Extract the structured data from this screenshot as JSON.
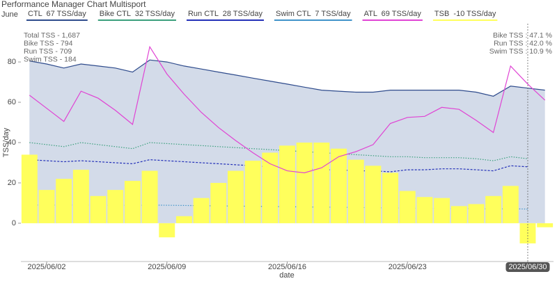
{
  "chart_data": {
    "type": "line",
    "title": "Performance Manager Chart Multisport",
    "month_label": "June",
    "x_label": "date",
    "y_label": "TSS/day",
    "x": [
      "2025/06/01",
      "2025/06/02",
      "2025/06/03",
      "2025/06/04",
      "2025/06/05",
      "2025/06/06",
      "2025/06/07",
      "2025/06/08",
      "2025/06/09",
      "2025/06/10",
      "2025/06/11",
      "2025/06/12",
      "2025/06/13",
      "2025/06/14",
      "2025/06/15",
      "2025/06/16",
      "2025/06/17",
      "2025/06/18",
      "2025/06/19",
      "2025/06/20",
      "2025/06/21",
      "2025/06/22",
      "2025/06/23",
      "2025/06/24",
      "2025/06/25",
      "2025/06/26",
      "2025/06/27",
      "2025/06/28",
      "2025/06/29",
      "2025/06/30",
      "2025/07/01"
    ],
    "xlim": [
      "2025/05/31 12:00",
      "2025/07/01 12:00"
    ],
    "xticks": [
      "2025/06/02",
      "2025/06/09",
      "2025/06/16",
      "2025/06/23",
      "2025/06/30"
    ],
    "ylim": [
      -19,
      99
    ],
    "yticks": [
      0,
      20,
      40,
      60,
      80
    ],
    "grid": false,
    "series": [
      {
        "name": "CTL  67 TSS/day",
        "type": "area",
        "line_style": "solid",
        "color": "#2e4b8c",
        "fill": "#d3dbe9",
        "values": [
          80.5,
          79,
          77,
          79,
          78,
          77,
          75,
          81,
          80,
          78,
          76.5,
          75,
          73.5,
          72,
          70.5,
          69,
          67.5,
          66,
          65.5,
          65,
          65,
          66,
          66,
          66,
          66,
          66,
          65,
          63,
          68,
          67,
          66
        ]
      },
      {
        "name": "Bike CTL  32 TSS/day",
        "type": "line",
        "line_style": "dotted",
        "color": "#3a9f7c",
        "values": [
          40,
          39,
          38,
          40,
          39,
          38,
          37,
          40,
          39.5,
          39,
          38.5,
          38,
          37.5,
          37,
          36.5,
          36,
          35.5,
          35,
          34.5,
          34,
          33.5,
          33,
          33,
          32.5,
          32.5,
          32.5,
          32,
          31,
          33,
          32,
          null
        ]
      },
      {
        "name": "Run CTL  28 TSS/day",
        "type": "line",
        "line_style": "dashed",
        "color": "#2330b8",
        "values": [
          31.5,
          31,
          30.5,
          31,
          30.5,
          30,
          29.5,
          31.5,
          31,
          30.5,
          30,
          29.5,
          29,
          28.5,
          28,
          27.5,
          27,
          26.5,
          26.5,
          26,
          26,
          25.5,
          26.5,
          26.5,
          27,
          27,
          26.5,
          26,
          28.5,
          28,
          null
        ]
      },
      {
        "name": "Swim CTL  7 TSS/day",
        "type": "line",
        "line_style": "dotted",
        "color": "#3f93c9",
        "values": [
          9,
          9,
          9,
          9,
          9,
          8.9,
          8.8,
          9,
          8.9,
          8.8,
          8.7,
          8.6,
          8.5,
          8.4,
          8.3,
          8.2,
          8.1,
          8,
          7.9,
          7.8,
          7.7,
          7.6,
          7.5,
          7.4,
          7.3,
          7.3,
          7.2,
          7.1,
          7.2,
          7,
          null
        ]
      },
      {
        "name": "ATL  69 TSS/day",
        "type": "line",
        "line_style": "solid",
        "color": "#e044d4",
        "values": [
          63.5,
          57,
          50.5,
          65.5,
          62,
          56,
          49,
          87.5,
          74,
          64,
          55,
          47.5,
          41,
          35,
          29.5,
          26,
          25,
          27.5,
          33,
          35.5,
          39,
          49.5,
          52.5,
          53,
          57.5,
          56.5,
          51,
          45,
          78,
          69,
          61
        ]
      },
      {
        "name": "TSB  -10 TSS/day",
        "type": "bar",
        "color": "#ffff5c",
        "values": [
          34,
          16.5,
          22,
          26.5,
          13.5,
          16.5,
          21,
          26,
          -7,
          3.5,
          12.5,
          20,
          26,
          31,
          35,
          38.5,
          40,
          40,
          37,
          31.5,
          28.5,
          25,
          16,
          13,
          12.5,
          8.5,
          9.5,
          13.5,
          18.5,
          -10,
          -2
        ]
      }
    ],
    "stats_left": [
      "Total TSS - 1,687",
      "Bike TSS - 794",
      "Run TSS - 709",
      "Swim TSS - 184"
    ],
    "stats_right": [
      "Bike TSS : 47.1 %",
      "Run TSS : 42.0 %",
      "Swim TSS : 10.9 %"
    ],
    "hover_label": "2025/06/30"
  }
}
